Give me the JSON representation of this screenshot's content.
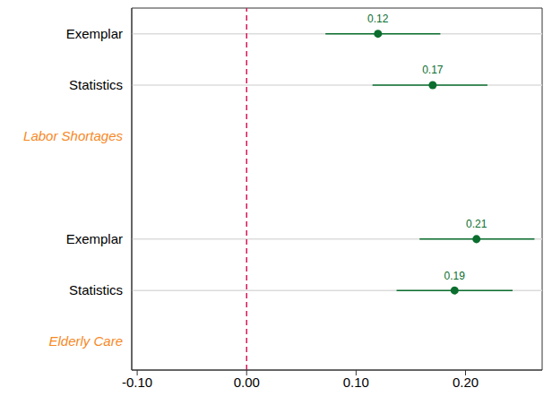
{
  "chart_data": {
    "type": "dot_whisker",
    "orientation": "horizontal",
    "color": "#0b6e2e",
    "grid": true,
    "data_labels": true,
    "reference_line": 0,
    "xlim": [
      -0.105,
      0.27
    ],
    "xticks": [
      {
        "value": -0.1,
        "label": "-0.10"
      },
      {
        "value": 0,
        "label": "0.00"
      },
      {
        "value": 0.1,
        "label": "0.10"
      },
      {
        "value": 0.2,
        "label": "0.20"
      }
    ],
    "groups": [
      {
        "name": "Elderly Care",
        "categories": [
          "Statistics",
          "Exemplar"
        ],
        "values": [
          0.19,
          0.21
        ],
        "ci_low": [
          0.137,
          0.158
        ],
        "ci_high": [
          0.243,
          0.263
        ]
      },
      {
        "name": "Labor Shortages",
        "categories": [
          "Statistics",
          "Exemplar"
        ],
        "values": [
          0.17,
          0.12
        ],
        "ci_low": [
          0.115,
          0.072
        ],
        "ci_high": [
          0.22,
          0.177
        ]
      }
    ]
  }
}
